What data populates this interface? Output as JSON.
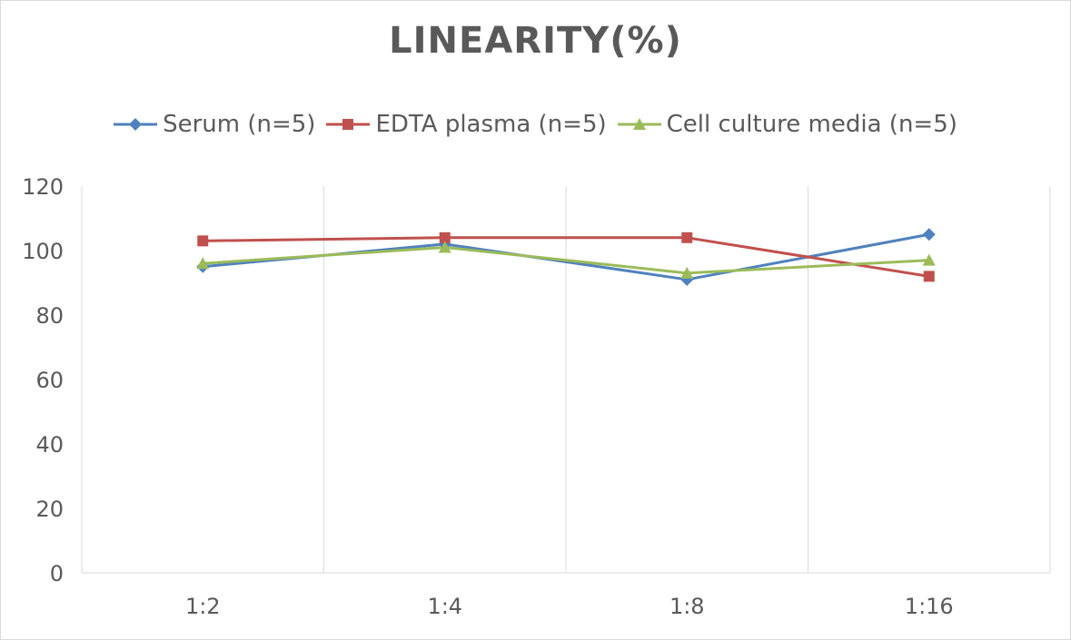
{
  "chart_data": {
    "type": "line",
    "title": "LINEARITY(%)",
    "categories": [
      "1:2",
      "1:4",
      "1:8",
      "1:16"
    ],
    "ylim": [
      0,
      120
    ],
    "yticks": [
      0,
      20,
      40,
      60,
      80,
      100,
      120
    ],
    "grid": "vertical",
    "legend_position": "top",
    "series": [
      {
        "name": "Serum (n=5)",
        "values": [
          95,
          102,
          91,
          105
        ],
        "color": "#4f81bd",
        "marker": "diamond"
      },
      {
        "name": "EDTA plasma (n=5)",
        "values": [
          103,
          104,
          104,
          92
        ],
        "color": "#c0504d",
        "marker": "square"
      },
      {
        "name": "Cell culture media (n=5)",
        "values": [
          96,
          101,
          93,
          97
        ],
        "color": "#9bbb59",
        "marker": "triangle"
      }
    ]
  }
}
